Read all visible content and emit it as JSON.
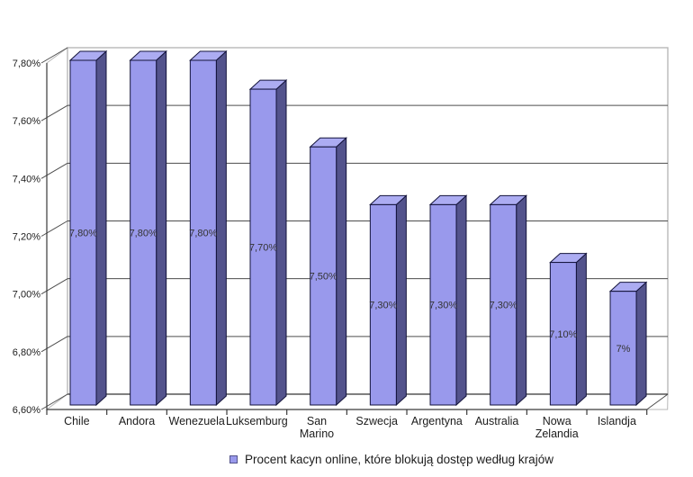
{
  "chart_data": {
    "type": "bar",
    "style_3d": true,
    "grid": true,
    "title": "",
    "categories": [
      "Chile",
      "Andora",
      "Wenezuela",
      "Luksemburg",
      "San Marino",
      "Szwecja",
      "Argentyna",
      "Australia",
      "Nowa Zelandia",
      "Islandja"
    ],
    "values": [
      7.8,
      7.8,
      7.8,
      7.7,
      7.5,
      7.3,
      7.3,
      7.3,
      7.1,
      7.0
    ],
    "value_labels": [
      "7,80%",
      "7,80%",
      "7,80%",
      "7,70%",
      "7,50%",
      "7,30%",
      "7,30%",
      "7,30%",
      "7,10%",
      "7%"
    ],
    "xlabel": "",
    "ylabel": "",
    "y_axis": {
      "min": 6.6,
      "max": 7.8,
      "step": 0.2,
      "tick_labels": [
        "6,60%",
        "6,80%",
        "7,00%",
        "7,20%",
        "7,40%",
        "7,60%",
        "7,80%"
      ]
    },
    "legend": {
      "position": "bottom",
      "label": "Procent kacyn online, które blokują dostęp według krajów"
    },
    "colors": {
      "bar_front": "#9999EC",
      "bar_top": "#ACACF2",
      "bar_side": "#53538C",
      "bar_outline": "#14143C",
      "gridline": "#4d4d4d",
      "wall_border": "#b8b8b8",
      "axis": "#3a3a3a",
      "text": "#1c1c1c",
      "value_label_text": "#333333",
      "background": "#ffffff"
    }
  }
}
